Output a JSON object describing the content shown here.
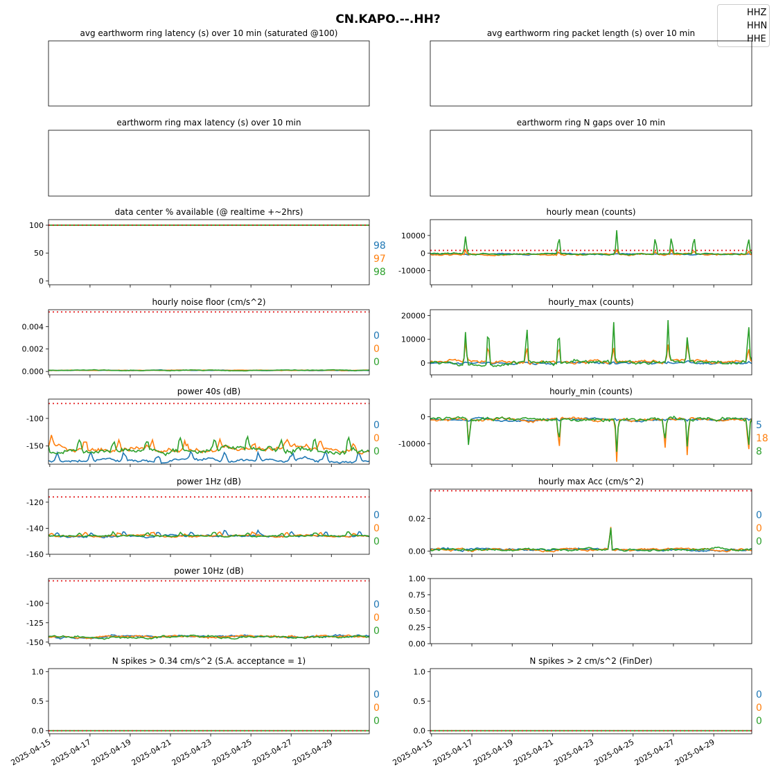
{
  "figure": {
    "suptitle": "CN.KAPO.--.HH?",
    "colors": {
      "HHZ": "#1f77b4",
      "HHN": "#ff7f0e",
      "HHE": "#2ca02c",
      "threshold": "#e31a1c"
    },
    "legend": [
      "HHZ",
      "HHN",
      "HHE"
    ],
    "x_dates": [
      "2025-04-15",
      "2025-04-17",
      "2025-04-19",
      "2025-04-21",
      "2025-04-23",
      "2025-04-25",
      "2025-04-27",
      "2025-04-29"
    ]
  },
  "chart_data": [
    {
      "id": "avg_latency",
      "type": "line",
      "title": "avg earthworm ring latency (s)   over 10 min (saturated @100)",
      "series": [],
      "yticks": [],
      "right_labels": []
    },
    {
      "id": "avg_packet",
      "type": "line",
      "title": "avg earthworm ring packet length (s)   over 10 min",
      "series": [],
      "yticks": [],
      "right_labels": []
    },
    {
      "id": "max_latency",
      "type": "line",
      "title": "earthworm ring max latency (s)   over 10 min",
      "series": [],
      "yticks": [],
      "right_labels": []
    },
    {
      "id": "n_gaps",
      "type": "line",
      "title": "earthworm ring N gaps   over 10 min",
      "series": [],
      "yticks": [],
      "right_labels": []
    },
    {
      "id": "availability",
      "type": "line",
      "title": "data center % available (@ realtime +~2hrs)",
      "ylim": [
        -7,
        110
      ],
      "yticks": [
        "0",
        "50",
        "100"
      ],
      "threshold": 100,
      "series": [
        {
          "name": "HHZ",
          "base": 100,
          "noise": 0
        },
        {
          "name": "HHN",
          "base": 100,
          "noise": 0
        },
        {
          "name": "HHE",
          "base": 100,
          "noise": 0
        }
      ],
      "right_labels": [
        "98",
        "97",
        "98"
      ]
    },
    {
      "id": "hourly_mean",
      "type": "line",
      "title": "hourly mean (counts)",
      "ylim": [
        -18000,
        19000
      ],
      "yticks": [
        "-10000",
        "0",
        "10000"
      ],
      "threshold": 1500,
      "series": [
        {
          "name": "HHZ",
          "base": -500,
          "noise": 400,
          "amp": 200
        },
        {
          "name": "HHN",
          "base": -800,
          "noise": 600,
          "amp": 3000
        },
        {
          "name": "HHE",
          "base": -500,
          "noise": 500,
          "amp": 16000
        }
      ],
      "spikes": [
        0.11,
        0.4,
        0.58,
        0.7,
        0.75,
        0.82,
        0.99
      ],
      "right_labels": []
    },
    {
      "id": "noise_floor",
      "type": "line",
      "title": "hourly noise floor (cm/s^2)",
      "ylim": [
        -0.0003,
        0.0055
      ],
      "yticks": [
        "0.000",
        "0.002",
        "0.004"
      ],
      "threshold": 0.0053,
      "series": [
        {
          "name": "HHZ",
          "base": 0.0001,
          "noise": 3e-05
        },
        {
          "name": "HHN",
          "base": 0.0001,
          "noise": 3e-05
        },
        {
          "name": "HHE",
          "base": 0.0001,
          "noise": 4e-05
        }
      ],
      "right_labels": [
        "0",
        "0",
        "0"
      ]
    },
    {
      "id": "hourly_max",
      "type": "line",
      "title": "hourly_max (counts)",
      "ylim": [
        -5000,
        22500
      ],
      "yticks": [
        "0",
        "10000",
        "20000"
      ],
      "threshold": null,
      "series": [
        {
          "name": "HHZ",
          "base": 0,
          "noise": 600,
          "amp": 800
        },
        {
          "name": "HHN",
          "base": 500,
          "noise": 900,
          "amp": 9500
        },
        {
          "name": "HHE",
          "base": 400,
          "noise": 1100,
          "amp": 20000
        }
      ],
      "spikes": [
        0.11,
        0.18,
        0.3,
        0.4,
        0.57,
        0.74,
        0.8,
        0.99
      ],
      "right_labels": []
    },
    {
      "id": "power_40s",
      "type": "line",
      "title": "power 40s (dB)",
      "ylim": [
        -183,
        -65
      ],
      "yticks": [
        "-150",
        "-100"
      ],
      "threshold": -73,
      "series": [
        {
          "name": "HHZ",
          "base": -176,
          "noise": 4,
          "amp": 18
        },
        {
          "name": "HHN",
          "base": -155,
          "noise": 6,
          "amp": 20
        },
        {
          "name": "HHE",
          "base": -157,
          "noise": 7,
          "amp": 25
        }
      ],
      "right_labels": [
        "0",
        "0",
        "0"
      ]
    },
    {
      "id": "hourly_min",
      "type": "line",
      "title": "hourly_min (counts)",
      "ylim": [
        -17500,
        6500
      ],
      "yticks": [
        "-10000",
        "0"
      ],
      "threshold": null,
      "series": [
        {
          "name": "HHZ",
          "base": -1000,
          "noise": 500,
          "amp": -700
        },
        {
          "name": "HHN",
          "base": -1000,
          "noise": 700,
          "amp": -16000
        },
        {
          "name": "HHE",
          "base": -1000,
          "noise": 900,
          "amp": -13000
        }
      ],
      "spikes": [
        0.12,
        0.4,
        0.58,
        0.73,
        0.8,
        0.99
      ],
      "right_labels": [
        "5",
        "18",
        "8"
      ]
    },
    {
      "id": "power_1hz",
      "type": "line",
      "title": "power 1Hz (dB)",
      "ylim": [
        -160,
        -110
      ],
      "yticks": [
        "-160",
        "-140",
        "-120"
      ],
      "threshold": -116,
      "series": [
        {
          "name": "HHZ",
          "base": -146,
          "noise": 1,
          "amp": 4
        },
        {
          "name": "HHN",
          "base": -146,
          "noise": 1,
          "amp": 3
        },
        {
          "name": "HHE",
          "base": -146,
          "noise": 1,
          "amp": 3
        }
      ],
      "right_labels": [
        "0",
        "0",
        "0"
      ]
    },
    {
      "id": "hourly_max_acc",
      "type": "line",
      "title": "hourly max Acc (cm/s^2)",
      "ylim": [
        -0.002,
        0.038
      ],
      "yticks": [
        "0.00",
        "0.02"
      ],
      "threshold": 0.037,
      "series": [
        {
          "name": "HHZ",
          "base": 0.001,
          "noise": 0.001
        },
        {
          "name": "HHN",
          "base": 0.001,
          "noise": 0.001
        },
        {
          "name": "HHE",
          "base": 0.001,
          "noise": 0.001
        }
      ],
      "spikes": [
        0.56
      ],
      "right_labels": [
        "0",
        "0",
        "0"
      ]
    },
    {
      "id": "power_10hz",
      "type": "line",
      "title": "power 10Hz (dB)",
      "ylim": [
        -152,
        -68
      ],
      "yticks": [
        "-150",
        "-125",
        "-100"
      ],
      "threshold": -71,
      "series": [
        {
          "name": "HHZ",
          "base": -143,
          "noise": 2
        },
        {
          "name": "HHN",
          "base": -143,
          "noise": 2
        },
        {
          "name": "HHE",
          "base": -143,
          "noise": 2
        }
      ],
      "right_labels": [
        "0",
        "0",
        "0"
      ]
    },
    {
      "id": "empty",
      "type": "line",
      "title": "",
      "ylim": [
        0,
        1
      ],
      "yticks": [
        "0.00",
        "0.25",
        "0.50",
        "0.75",
        "1.00"
      ],
      "threshold": null,
      "series": [],
      "right_labels": []
    },
    {
      "id": "spikes_sa",
      "type": "line",
      "title": "N spikes > 0.34 cm/s^2 (S.A. acceptance = 1)",
      "ylim": [
        -0.05,
        1.05
      ],
      "yticks": [
        "0.0",
        "0.5",
        "1.0"
      ],
      "threshold": 0,
      "series": [
        {
          "name": "HHZ",
          "base": 0,
          "noise": 0
        },
        {
          "name": "HHN",
          "base": 0,
          "noise": 0
        },
        {
          "name": "HHE",
          "base": 0,
          "noise": 0
        }
      ],
      "right_labels": [
        "0",
        "0",
        "0"
      ]
    },
    {
      "id": "spikes_finder",
      "type": "line",
      "title": "N spikes > 2 cm/s^2 (FinDer)",
      "ylim": [
        -0.05,
        1.05
      ],
      "yticks": [
        "0.0",
        "0.5",
        "1.0"
      ],
      "threshold": 0,
      "series": [
        {
          "name": "HHZ",
          "base": 0,
          "noise": 0
        },
        {
          "name": "HHN",
          "base": 0,
          "noise": 0
        },
        {
          "name": "HHE",
          "base": 0,
          "noise": 0
        }
      ],
      "right_labels": [
        "0",
        "0",
        "0"
      ]
    }
  ]
}
